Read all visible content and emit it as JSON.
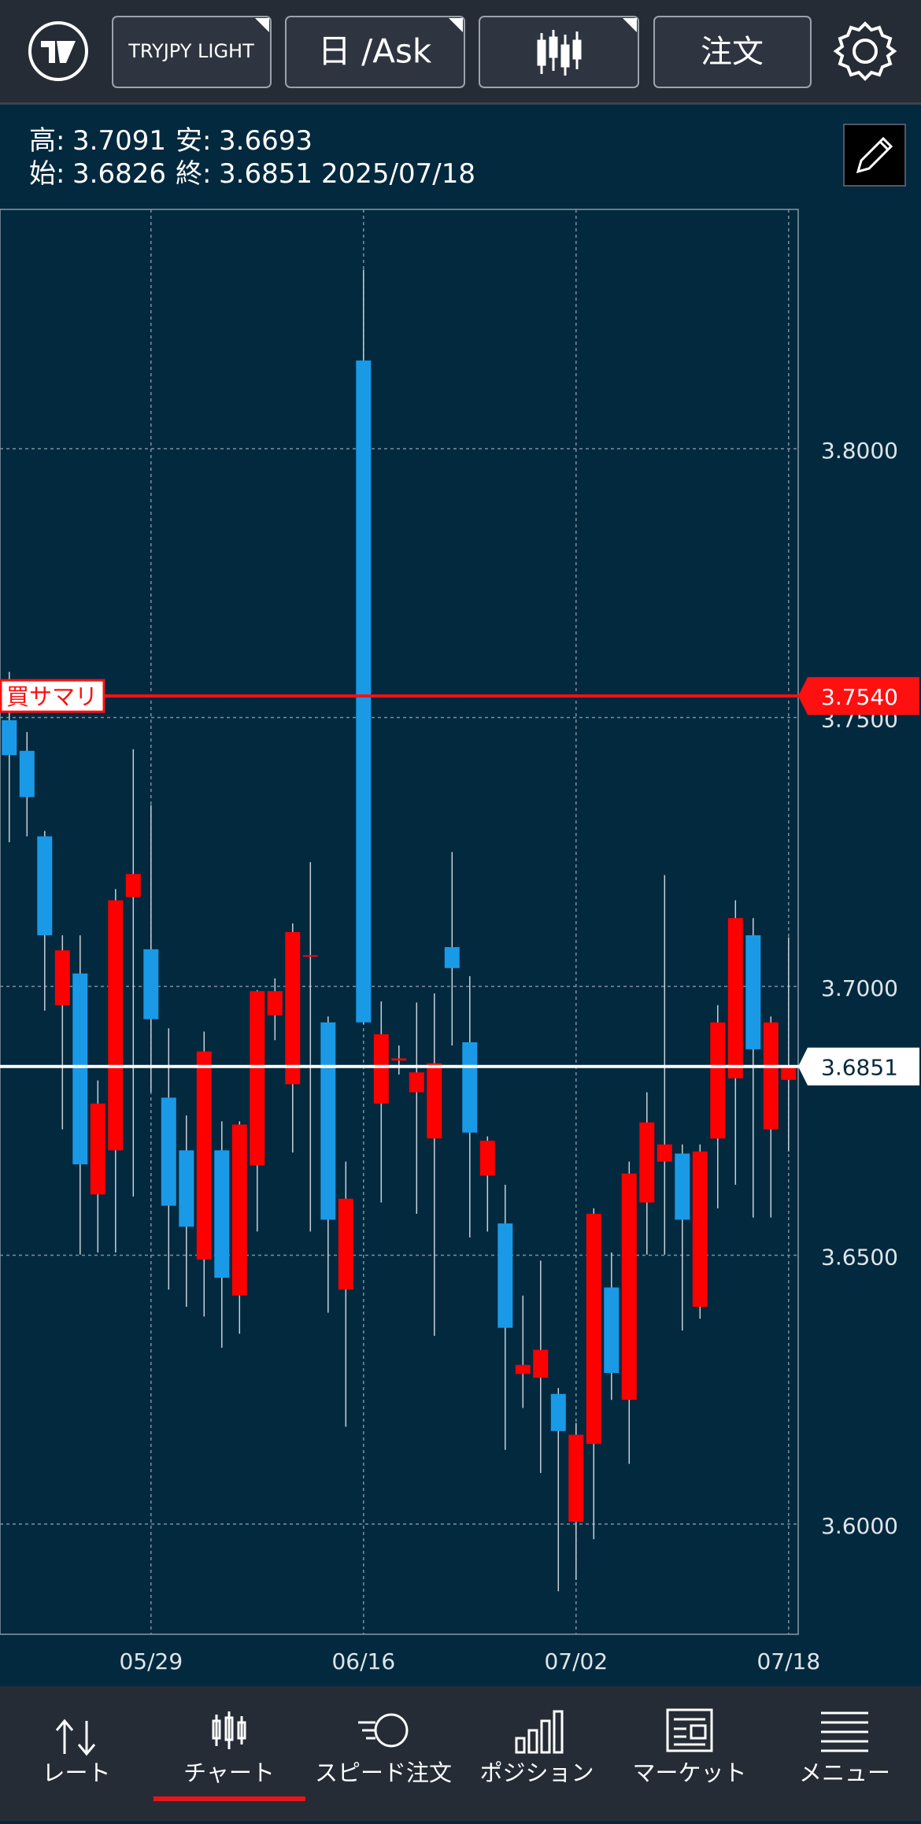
{
  "header": {
    "symbol": "TRYJPY LIGHT",
    "period": "日 /Ask",
    "order": "注文"
  },
  "info": {
    "high_label": "高:",
    "low_label": "安:",
    "open_label": "始:",
    "close_label": "終:",
    "date": "2025/07/18"
  },
  "chart_data": {
    "type": "candlestick",
    "categories": [
      null,
      null,
      null,
      null,
      null,
      null,
      null,
      null,
      "05/29",
      null,
      null,
      null,
      null,
      null,
      null,
      null,
      null,
      null,
      null,
      null,
      "06/16",
      null,
      null,
      null,
      null,
      null,
      null,
      null,
      null,
      null,
      null,
      null,
      "07/02",
      null,
      null,
      null,
      null,
      null,
      null,
      null,
      null,
      null,
      null,
      null,
      "07/18"
    ],
    "open": [
      3.7495,
      3.7438,
      3.7279,
      3.6965,
      3.7024,
      3.6613,
      3.6695,
      3.7166,
      3.7069,
      3.6793,
      3.6695,
      3.6492,
      3.6695,
      3.6425,
      3.6667,
      3.6946,
      3.6818,
      3.7055,
      3.6933,
      3.6436,
      3.8164,
      3.6782,
      3.6862,
      3.6803,
      3.6717,
      3.7073,
      3.6896,
      3.6648,
      3.6559,
      3.6279,
      3.6272,
      3.6242,
      3.6004,
      3.6149,
      3.644,
      3.6231,
      3.6598,
      3.6674,
      3.6689,
      3.6404,
      3.6717,
      3.6829,
      3.7095,
      3.6734,
      3.6826
    ],
    "high": [
      3.7585,
      3.7473,
      3.7289,
      3.7095,
      3.7095,
      3.6825,
      3.7181,
      3.7441,
      3.7337,
      3.6922,
      3.676,
      3.6916,
      3.6749,
      3.6749,
      3.6993,
      3.7015,
      3.7117,
      3.7231,
      3.6944,
      3.6674,
      3.8333,
      3.6972,
      3.689,
      3.697,
      3.6987,
      3.725,
      3.7019,
      3.6721,
      3.6631,
      3.6425,
      3.649,
      3.6253,
      3.6188,
      3.6587,
      3.6505,
      3.6674,
      3.6803,
      3.7207,
      3.6706,
      3.6706,
      3.6965,
      3.716,
      3.7127,
      3.6944,
      3.7091
    ],
    "low": [
      3.7268,
      3.7279,
      3.6955,
      3.6734,
      3.6501,
      3.6505,
      3.6505,
      3.6609,
      3.6803,
      3.6436,
      3.6404,
      3.6386,
      3.6328,
      3.6354,
      3.6544,
      3.69,
      3.6691,
      3.6544,
      3.6393,
      3.6181,
      3.693,
      3.6598,
      3.6836,
      3.6577,
      3.635,
      3.689,
      3.6533,
      3.6544,
      3.6138,
      3.6216,
      3.6095,
      3.5875,
      3.5896,
      3.5972,
      3.6231,
      3.6112,
      3.6501,
      3.6501,
      3.636,
      3.6382,
      3.6587,
      3.6631,
      3.657,
      3.657,
      3.6693
    ],
    "close": [
      3.743,
      3.7352,
      3.7095,
      3.7067,
      3.6669,
      3.6782,
      3.716,
      3.7209,
      3.6939,
      3.6592,
      3.6553,
      3.6879,
      3.6458,
      3.6743,
      3.6991,
      3.6991,
      3.7101,
      3.7058,
      3.6566,
      3.6605,
      3.6933,
      3.6911,
      3.6866,
      3.684,
      3.6857,
      3.7034,
      3.6728,
      3.6713,
      3.6365,
      3.6296,
      3.6324,
      3.6173,
      3.6166,
      3.6577,
      3.6281,
      3.6652,
      3.6747,
      3.6706,
      3.6566,
      3.6693,
      3.6933,
      3.7127,
      3.6883,
      3.6933,
      3.6851
    ],
    "up_color": "#ff0000",
    "down_color": "#1a9ae6",
    "ylim": [
      3.5795,
      3.8445
    ],
    "yticks": [
      {
        "value": 3.6,
        "label": "3.6000"
      },
      {
        "value": 3.65,
        "label": "3.6500"
      },
      {
        "value": 3.7,
        "label": "3.7000"
      },
      {
        "value": 3.75,
        "label": "3.7500"
      },
      {
        "value": 3.8,
        "label": "3.8000"
      }
    ],
    "grid": true,
    "lines": [
      {
        "name": "買サマリ",
        "value": 3.754,
        "label": "3.7540",
        "color": "#ff1010"
      },
      {
        "value": 3.6851,
        "label": "3.6851",
        "color": "#ffffff"
      }
    ]
  },
  "nav": [
    "レート",
    "チャート",
    "スピード注文",
    "ポジション",
    "マーケット",
    "メニュー"
  ]
}
